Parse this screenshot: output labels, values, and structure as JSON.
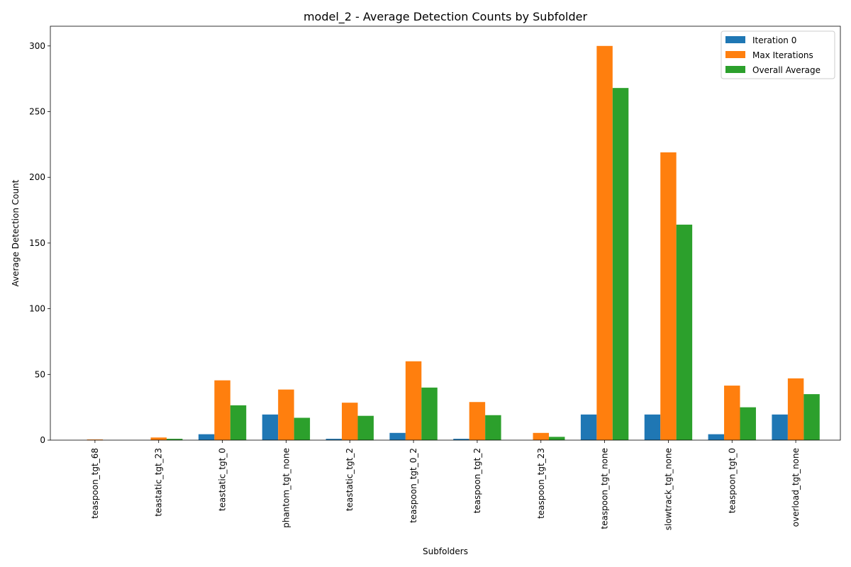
{
  "chart_data": {
    "type": "bar",
    "title": "model_2 - Average Detection Counts by Subfolder",
    "xlabel": "Subfolders",
    "ylabel": "Average Detection Count",
    "ylim": [
      0,
      315
    ],
    "yticks": [
      0,
      50,
      100,
      150,
      200,
      250,
      300
    ],
    "grid": false,
    "legend_position": "top-right",
    "categories": [
      "teaspoon_tgt_68",
      "teastatic_tgt_23",
      "teastatic_tgt_0",
      "phantom_tgt_none",
      "teastatic_tgt_2",
      "teaspoon_tgt_0_2",
      "teaspoon_tgt_2",
      "teaspoon_tgt_23",
      "teaspoon_tgt_none",
      "slowtrack_tgt_none",
      "teaspoon_tgt_0",
      "overload_tgt_none"
    ],
    "series": [
      {
        "name": "Iteration 0",
        "color": "#1f77b4",
        "values": [
          0,
          0,
          4.5,
          19.5,
          1.0,
          5.5,
          1.0,
          0,
          19.5,
          19.5,
          4.5,
          19.5
        ]
      },
      {
        "name": "Max Iterations",
        "color": "#ff7f0e",
        "values": [
          0.5,
          2.0,
          45.5,
          38.5,
          28.5,
          60.0,
          29.0,
          5.5,
          300.0,
          219.0,
          41.5,
          47.0
        ]
      },
      {
        "name": "Overall Average",
        "color": "#2ca02c",
        "values": [
          0,
          1.0,
          26.5,
          17.0,
          18.5,
          40.0,
          19.0,
          2.5,
          268.0,
          164.0,
          25.0,
          35.0
        ]
      }
    ]
  }
}
